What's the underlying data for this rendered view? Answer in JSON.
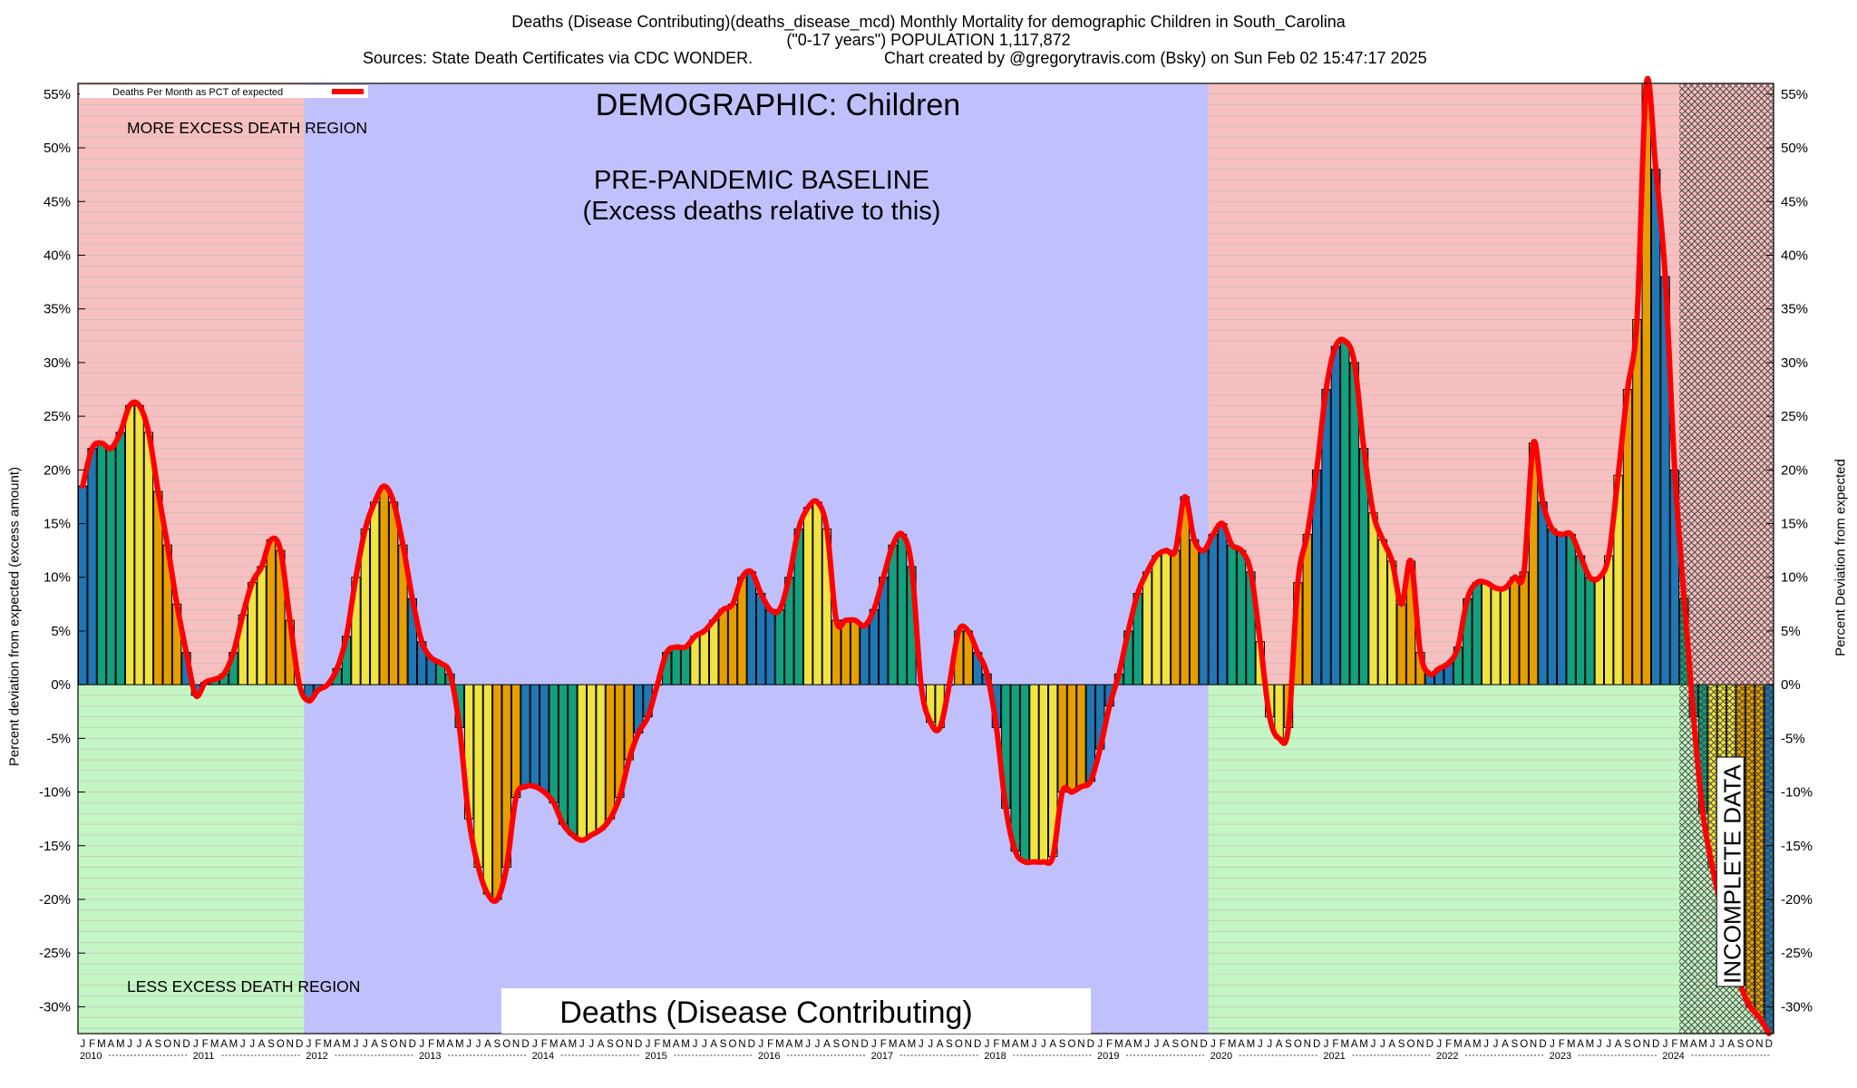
{
  "header": {
    "line1": "Deaths (Disease Contributing)(deaths_disease_mcd) Monthly Mortality for demographic Children in South_Carolina",
    "line2": "(\"0-17 years\") POPULATION 1,117,872",
    "line3a": "Sources: State Death Certificates via CDC WONDER.",
    "line3b": "Chart created by @gregorytravis.com (Bsky) on Sun Feb 02 15:47:17 2025"
  },
  "chart_data": {
    "type": "bar",
    "title": "Deaths (Disease Contributing)(deaths_disease_mcd) Monthly Mortality for demographic Children in South_Carolina",
    "ylabel": "Percent deviation from expected (excess amount)",
    "ylabel_right": "Percent Deviation from expected",
    "ylim": [
      -32.5,
      56
    ],
    "y_ticks": [
      55,
      50,
      45,
      40,
      35,
      30,
      25,
      20,
      15,
      10,
      5,
      0,
      -5,
      -10,
      -15,
      -20,
      -25,
      -30
    ],
    "y_tick_suffix": "%",
    "x_start": "2010-01",
    "month_letters": [
      "J",
      "F",
      "M",
      "A",
      "M",
      "J",
      "J",
      "A",
      "S",
      "O",
      "N",
      "D"
    ],
    "years": [
      "2010",
      "2011",
      "2012",
      "2013",
      "2014",
      "2015",
      "2016",
      "2017",
      "2018",
      "2019",
      "2020",
      "2021",
      "2022",
      "2023",
      "2024"
    ],
    "legend": {
      "series_name": "Deaths Per Month as PCT of expected",
      "position": "top-left"
    },
    "grid": true,
    "season_colors": {
      "winter": "#1f77b4",
      "spring": "#13a07d",
      "summer": "#f0e442",
      "fall": "#e69f00"
    },
    "line_color": "#ff0000",
    "regions": [
      {
        "label": "MORE EXCESS DEATH REGION",
        "color": "#f7c0c0"
      },
      {
        "label": "LESS EXCESS DEATH REGION",
        "color": "#c4f5c4"
      },
      {
        "label": "PRE-PANDEMIC BASELINE",
        "label2": "(Excess deaths relative to this)",
        "color": "#c0c0fc",
        "start": "2012-01",
        "end": "2019-12"
      },
      {
        "label": "INCOMPLETE DATA",
        "start": "2024-03",
        "end": "2024-12"
      }
    ],
    "annotations": {
      "demographic": "DEMOGRAPHIC: Children",
      "measure": "Deaths (Disease Contributing)"
    },
    "values": [
      18.5,
      22.0,
      22.5,
      22.0,
      23.5,
      26.0,
      26.0,
      23.5,
      18.0,
      13.0,
      7.5,
      3.0,
      -1.0,
      0.2,
      0.5,
      1.0,
      3.0,
      6.5,
      9.5,
      11.0,
      13.5,
      12.5,
      6.0,
      0.0,
      -1.5,
      -0.5,
      0.0,
      1.5,
      4.5,
      10.0,
      14.5,
      17.0,
      18.5,
      17.0,
      13.0,
      8.0,
      4.0,
      2.5,
      2.0,
      1.0,
      -4.0,
      -12.5,
      -17.0,
      -19.5,
      -20.0,
      -17.0,
      -10.5,
      -9.5,
      -9.5,
      -10.0,
      -11.0,
      -13.0,
      -14.0,
      -14.5,
      -14.0,
      -13.5,
      -12.5,
      -10.5,
      -7.0,
      -4.5,
      -3.0,
      0.0,
      3.0,
      3.5,
      3.5,
      4.5,
      5.0,
      6.0,
      7.0,
      7.5,
      10.0,
      10.5,
      8.5,
      7.0,
      7.0,
      10.0,
      14.5,
      16.5,
      17.0,
      14.5,
      6.0,
      6.0,
      6.0,
      5.5,
      7.0,
      10.0,
      13.0,
      14.0,
      11.0,
      0.0,
      -3.5,
      -4.0,
      0.0,
      5.0,
      5.0,
      3.0,
      1.0,
      -4.0,
      -11.5,
      -15.5,
      -16.5,
      -16.5,
      -16.5,
      -16.0,
      -10.0,
      -10.0,
      -9.5,
      -9.0,
      -6.0,
      -2.0,
      1.0,
      5.0,
      8.5,
      10.5,
      12.0,
      12.5,
      12.5,
      17.5,
      13.5,
      12.5,
      14.0,
      15.0,
      13.0,
      12.5,
      10.5,
      4.0,
      -3.0,
      -5.0,
      -4.0,
      9.5,
      14.0,
      20.0,
      27.5,
      31.5,
      32.0,
      30.0,
      22.0,
      16.0,
      13.5,
      11.5,
      7.5,
      11.5,
      3.0,
      1.0,
      1.5,
      2.0,
      3.5,
      8.0,
      9.5,
      9.5,
      9.0,
      9.0,
      10.0,
      10.5,
      22.5,
      17.0,
      14.5,
      14.0,
      14.0,
      12.0,
      10.0,
      10.0,
      12.0,
      19.5,
      27.5,
      34.0,
      56.0,
      48.0,
      38.0,
      20.0,
      8.0,
      -3.0,
      -12.0,
      -17.0,
      -21.0,
      -25.0,
      -28.0,
      -30.0,
      -31.0,
      -32.5
    ]
  }
}
